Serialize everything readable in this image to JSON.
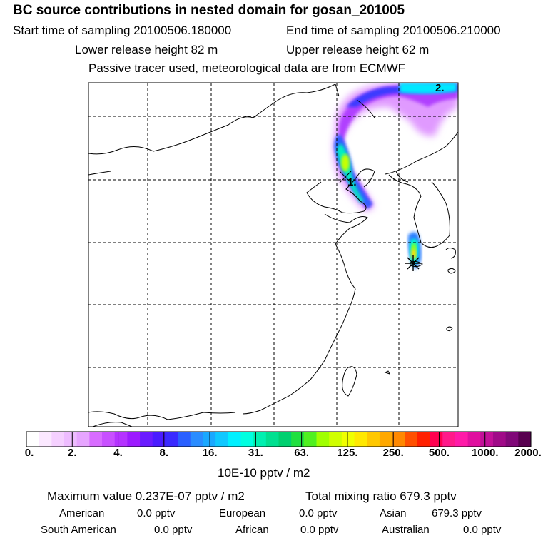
{
  "header": {
    "title": "BC  source contributions in nested domain for gosan_201005",
    "start_label": "Start time of sampling 20100506.180000",
    "end_label": "End time of sampling 20100506.210000",
    "lower_release": "Lower release height   82 m",
    "upper_release": "Upper release height   62 m",
    "tracer_note": "Passive tracer used, meteorological data are from ECMWF"
  },
  "map": {
    "markers": [
      "1.",
      "2."
    ],
    "gridlines": "dashed"
  },
  "colorbar": {
    "ticks": [
      "0.",
      "2.",
      "4.",
      "8.",
      "16.",
      "31.",
      "63.",
      "125.",
      "250.",
      "500.",
      "1000.",
      "2000."
    ],
    "units": "10E-10 pptv / m2",
    "colors": [
      "#ffffff",
      "#fbe8ff",
      "#f5d0ff",
      "#eebcff",
      "#e7a5ff",
      "#d86cff",
      "#c850ff",
      "#b533ff",
      "#9d1bff",
      "#6a1bff",
      "#4a1bff",
      "#3a2aff",
      "#2a60ff",
      "#2a8cff",
      "#1aa8ff",
      "#10c8ff",
      "#00f0ff",
      "#00ffe0",
      "#00f0b0",
      "#00e090",
      "#00d070",
      "#20e040",
      "#50f020",
      "#a0ff00",
      "#d0ff00",
      "#f0ff00",
      "#ffe800",
      "#ffc800",
      "#ffa800",
      "#ff8800",
      "#ff5000",
      "#ff2000",
      "#ff0050",
      "#ff1a8a",
      "#ff1aa8",
      "#e0109f",
      "#c21098",
      "#a00a88",
      "#800878",
      "#580050"
    ]
  },
  "stats": {
    "maximum_value": "Maximum value  0.237E-07 pptv / m2",
    "total_mixing": "Total mixing ratio      679.3 pptv",
    "regions": [
      {
        "name": "American",
        "value": "0.0 pptv"
      },
      {
        "name": "European",
        "value": "0.0 pptv"
      },
      {
        "name": "Asian",
        "value": "679.3 pptv"
      },
      {
        "name": "South American",
        "value": "0.0 pptv"
      },
      {
        "name": "African",
        "value": "0.0 pptv"
      },
      {
        "name": "Australian",
        "value": "0.0 pptv"
      }
    ]
  },
  "theme": {
    "plume_center": "#00ffe0",
    "receptor": "#000000"
  }
}
